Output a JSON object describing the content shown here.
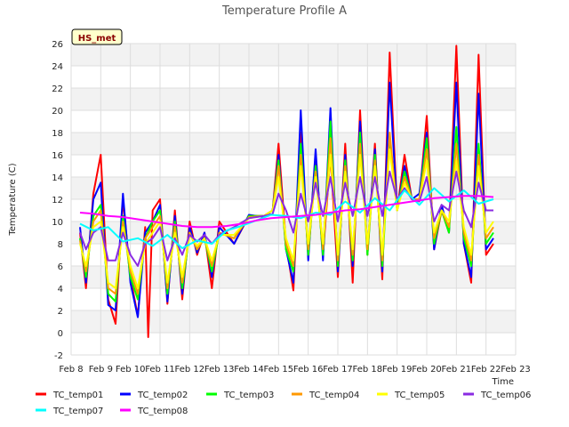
{
  "chart_data": {
    "type": "line",
    "title": "Temperature Profile A",
    "xlabel": "Time",
    "ylabel": "Temperature (C)",
    "badge": "HS_met",
    "ylim": [
      -2,
      26
    ],
    "yticks": [
      -2,
      0,
      2,
      4,
      6,
      8,
      10,
      12,
      14,
      16,
      18,
      20,
      22,
      24,
      26
    ],
    "xlim": [
      8,
      23
    ],
    "xticks": [
      {
        "v": 8,
        "label": "Feb 8"
      },
      {
        "v": 9,
        "label": "Feb 9"
      },
      {
        "v": 10,
        "label": "Feb 10"
      },
      {
        "v": 11,
        "label": "Feb 11"
      },
      {
        "v": 12,
        "label": "Feb 12"
      },
      {
        "v": 13,
        "label": "Feb 13"
      },
      {
        "v": 14,
        "label": "Feb 14"
      },
      {
        "v": 15,
        "label": "Feb 15"
      },
      {
        "v": 16,
        "label": "Feb 16"
      },
      {
        "v": 17,
        "label": "Feb 17"
      },
      {
        "v": 18,
        "label": "Feb 18"
      },
      {
        "v": 19,
        "label": "Feb 19"
      },
      {
        "v": 20,
        "label": "Feb 20"
      },
      {
        "v": 21,
        "label": "Feb 21"
      },
      {
        "v": 22,
        "label": "Feb 22"
      },
      {
        "v": 23,
        "label": "Feb 23"
      }
    ],
    "grid": true,
    "legend_position": "bottom",
    "series": [
      {
        "name": "TC_temp01",
        "color": "#ff0000",
        "x": [
          8.3,
          8.5,
          8.75,
          9.0,
          9.25,
          9.5,
          9.75,
          10.0,
          10.25,
          10.5,
          10.6,
          10.75,
          11.0,
          11.25,
          11.5,
          11.75,
          12.0,
          12.25,
          12.5,
          12.75,
          13.0,
          13.5,
          14.0,
          14.5,
          14.8,
          15.0,
          15.25,
          15.5,
          15.75,
          16.0,
          16.25,
          16.5,
          16.75,
          17.0,
          17.25,
          17.5,
          17.75,
          18.0,
          18.25,
          18.5,
          18.75,
          19.0,
          19.25,
          19.5,
          19.75,
          20.0,
          20.25,
          20.5,
          20.75,
          21.0,
          21.25,
          21.5,
          21.75,
          22.0,
          22.25
        ],
        "y": [
          9.0,
          4.0,
          12.5,
          16.0,
          3.0,
          0.8,
          12.0,
          5.0,
          1.5,
          9.5,
          -0.4,
          11.0,
          12.0,
          2.6,
          11.0,
          3.0,
          10.0,
          7.0,
          9.0,
          4.0,
          10.0,
          8.0,
          10.5,
          10.5,
          11.0,
          17.0,
          8.0,
          3.8,
          18.0,
          7.0,
          16.0,
          7.0,
          16.0,
          5.0,
          17.0,
          4.5,
          20.0,
          7.0,
          17.0,
          4.8,
          25.2,
          11.0,
          16.0,
          12.0,
          12.0,
          19.5,
          7.5,
          11.0,
          9.0,
          25.8,
          8.0,
          4.5,
          25.0,
          7.0,
          8.0
        ]
      },
      {
        "name": "TC_temp02",
        "color": "#0000ff",
        "x": [
          8.3,
          8.5,
          8.75,
          9.0,
          9.25,
          9.5,
          9.75,
          10.0,
          10.25,
          10.5,
          10.75,
          11.0,
          11.25,
          11.5,
          11.75,
          12.0,
          12.25,
          12.5,
          12.75,
          13.0,
          13.5,
          14.0,
          14.5,
          14.8,
          15.0,
          15.25,
          15.5,
          15.75,
          16.0,
          16.25,
          16.5,
          16.75,
          17.0,
          17.25,
          17.5,
          17.75,
          18.0,
          18.25,
          18.5,
          18.75,
          19.0,
          19.25,
          19.5,
          19.75,
          20.0,
          20.25,
          20.5,
          20.75,
          21.0,
          21.25,
          21.5,
          21.75,
          22.0,
          22.25
        ],
        "y": [
          9.5,
          4.5,
          12.0,
          13.5,
          2.5,
          2.0,
          12.5,
          4.5,
          1.4,
          9.0,
          10.0,
          11.5,
          2.8,
          10.5,
          3.5,
          9.5,
          7.2,
          9.0,
          5.0,
          9.5,
          8.0,
          10.6,
          10.4,
          11.0,
          16.0,
          7.5,
          4.5,
          20.0,
          6.5,
          16.5,
          6.5,
          20.2,
          5.5,
          16.0,
          6.0,
          19.0,
          7.5,
          16.5,
          5.5,
          22.5,
          11.0,
          15.0,
          12.0,
          12.5,
          18.0,
          7.5,
          11.5,
          9.0,
          22.5,
          8.0,
          5.0,
          21.5,
          7.5,
          8.5
        ]
      },
      {
        "name": "TC_temp03",
        "color": "#00ff00",
        "x": [
          8.3,
          8.5,
          8.75,
          9.0,
          9.25,
          9.5,
          9.75,
          10.0,
          10.25,
          10.5,
          10.75,
          11.0,
          11.25,
          11.5,
          11.75,
          12.0,
          12.25,
          12.5,
          12.75,
          13.0,
          13.5,
          14.0,
          14.5,
          14.8,
          15.0,
          15.25,
          15.5,
          15.75,
          16.0,
          16.25,
          16.5,
          16.75,
          17.0,
          17.25,
          17.5,
          17.75,
          18.0,
          18.25,
          18.5,
          18.75,
          19.0,
          19.25,
          19.5,
          19.75,
          20.0,
          20.25,
          20.5,
          20.75,
          21.0,
          21.25,
          21.5,
          21.75,
          22.0,
          22.25
        ],
        "y": [
          8.5,
          5.0,
          10.5,
          11.5,
          3.5,
          2.8,
          10.5,
          5.0,
          3.0,
          8.5,
          10.0,
          11.0,
          3.5,
          10.0,
          4.0,
          9.0,
          7.5,
          8.5,
          5.5,
          9.0,
          8.5,
          10.5,
          10.5,
          11.0,
          15.5,
          7.5,
          5.5,
          17.0,
          7.0,
          15.0,
          7.0,
          19.0,
          6.0,
          15.5,
          6.5,
          18.0,
          7.0,
          16.0,
          6.0,
          17.5,
          11.0,
          14.5,
          12.0,
          12.0,
          17.5,
          8.0,
          11.0,
          9.0,
          18.5,
          8.5,
          6.0,
          17.0,
          8.0,
          9.0
        ]
      },
      {
        "name": "TC_temp04",
        "color": "#ff9900",
        "x": [
          8.3,
          8.5,
          8.75,
          9.0,
          9.25,
          9.5,
          9.75,
          10.0,
          10.25,
          10.5,
          10.75,
          11.0,
          11.25,
          11.5,
          11.75,
          12.0,
          12.25,
          12.5,
          12.75,
          13.0,
          13.5,
          14.0,
          14.5,
          14.8,
          15.0,
          15.25,
          15.5,
          15.75,
          16.0,
          16.25,
          16.5,
          16.75,
          17.0,
          17.25,
          17.5,
          17.75,
          18.0,
          18.25,
          18.5,
          18.75,
          19.0,
          19.25,
          19.5,
          19.75,
          20.0,
          20.25,
          20.5,
          20.75,
          21.0,
          21.25,
          21.5,
          21.75,
          22.0,
          22.25
        ],
        "y": [
          8.3,
          5.5,
          10.0,
          11.0,
          4.0,
          3.5,
          10.0,
          5.5,
          3.5,
          8.5,
          9.5,
          10.5,
          4.0,
          9.5,
          4.5,
          9.0,
          7.5,
          8.5,
          6.0,
          9.0,
          8.5,
          10.4,
          10.5,
          11.0,
          15.0,
          8.0,
          6.0,
          16.0,
          7.5,
          14.5,
          7.5,
          17.5,
          6.5,
          15.0,
          7.0,
          17.0,
          7.5,
          15.5,
          6.5,
          18.0,
          11.0,
          14.0,
          12.0,
          12.0,
          16.5,
          8.5,
          11.0,
          9.5,
          17.0,
          9.0,
          6.5,
          16.0,
          8.5,
          9.5
        ]
      },
      {
        "name": "TC_temp05",
        "color": "#ffff00",
        "x": [
          8.3,
          8.5,
          8.75,
          9.0,
          9.25,
          9.5,
          9.75,
          10.0,
          10.25,
          10.5,
          10.75,
          11.0,
          11.25,
          11.5,
          11.75,
          12.0,
          12.25,
          12.5,
          12.75,
          13.0,
          13.5,
          14.0,
          14.5,
          14.8,
          15.0,
          15.25,
          15.5,
          15.75,
          16.0,
          16.25,
          16.5,
          16.75,
          17.0,
          17.25,
          17.5,
          17.75,
          18.0,
          18.25,
          18.5,
          18.75,
          19.0,
          19.25,
          19.5,
          19.75,
          20.0,
          20.25,
          20.5,
          20.75,
          21.0,
          21.25,
          21.5,
          21.75,
          22.0,
          22.25
        ],
        "y": [
          8.0,
          6.0,
          9.5,
          10.0,
          4.5,
          4.0,
          9.5,
          6.0,
          4.0,
          8.0,
          9.0,
          10.0,
          4.5,
          9.0,
          5.0,
          8.8,
          7.8,
          8.5,
          6.5,
          8.8,
          8.8,
          10.3,
          10.5,
          11.0,
          14.0,
          8.5,
          6.5,
          15.0,
          8.0,
          14.0,
          8.0,
          16.0,
          7.0,
          14.5,
          7.5,
          16.0,
          8.0,
          15.0,
          7.0,
          16.5,
          11.0,
          13.5,
          12.0,
          11.8,
          15.5,
          9.0,
          11.0,
          10.0,
          15.5,
          9.5,
          7.0,
          15.0,
          9.0,
          10.0
        ]
      },
      {
        "name": "TC_temp06",
        "color": "#8a2be2",
        "x": [
          8.3,
          8.5,
          8.75,
          9.0,
          9.25,
          9.5,
          9.75,
          10.0,
          10.25,
          10.5,
          10.75,
          11.0,
          11.25,
          11.5,
          11.75,
          12.0,
          12.25,
          12.5,
          12.75,
          13.0,
          13.5,
          14.0,
          14.5,
          14.8,
          15.0,
          15.25,
          15.5,
          15.75,
          16.0,
          16.25,
          16.5,
          16.75,
          17.0,
          17.25,
          17.5,
          17.75,
          18.0,
          18.25,
          18.5,
          18.75,
          19.0,
          19.25,
          19.5,
          19.75,
          20.0,
          20.25,
          20.5,
          20.75,
          21.0,
          21.25,
          21.5,
          21.75,
          22.0,
          22.25
        ],
        "y": [
          9.0,
          7.5,
          9.0,
          9.5,
          6.5,
          6.5,
          9.0,
          7.0,
          6.0,
          8.0,
          8.5,
          9.5,
          6.5,
          8.5,
          7.0,
          8.8,
          8.2,
          8.8,
          8.0,
          8.8,
          9.5,
          10.3,
          10.5,
          10.7,
          12.5,
          11.0,
          9.0,
          12.5,
          10.0,
          13.5,
          10.5,
          14.0,
          10.0,
          13.5,
          10.5,
          14.0,
          10.5,
          14.0,
          10.5,
          14.5,
          12.0,
          13.0,
          12.0,
          11.8,
          14.0,
          10.0,
          11.5,
          11.0,
          14.5,
          11.0,
          9.5,
          13.5,
          11.0,
          11.0
        ]
      },
      {
        "name": "TC_temp07",
        "color": "#00ffff",
        "x": [
          8.3,
          8.75,
          9.25,
          9.75,
          10.25,
          10.75,
          11.25,
          11.75,
          12.25,
          12.75,
          13.25,
          13.75,
          14.25,
          14.75,
          15.25,
          15.75,
          16.25,
          16.75,
          17.25,
          17.75,
          18.25,
          18.75,
          19.25,
          19.75,
          20.25,
          20.75,
          21.25,
          21.75,
          22.25
        ],
        "y": [
          9.8,
          9.2,
          9.5,
          8.2,
          8.5,
          7.8,
          8.8,
          7.6,
          8.3,
          8.0,
          9.2,
          9.6,
          10.1,
          10.6,
          10.5,
          10.3,
          10.8,
          10.6,
          11.8,
          10.8,
          12.1,
          11.0,
          12.8,
          11.5,
          13.0,
          11.8,
          12.8,
          11.6,
          12.0
        ]
      },
      {
        "name": "TC_temp08",
        "color": "#ff00ff",
        "x": [
          8.3,
          8.75,
          9.25,
          9.75,
          10.25,
          10.75,
          11.25,
          11.75,
          12.25,
          12.75,
          13.25,
          13.75,
          14.25,
          14.75,
          15.25,
          15.75,
          16.25,
          16.75,
          17.25,
          17.75,
          18.25,
          18.75,
          19.25,
          19.75,
          20.25,
          20.75,
          21.25,
          21.75,
          22.25
        ],
        "y": [
          10.8,
          10.7,
          10.5,
          10.4,
          10.2,
          10.0,
          9.8,
          9.6,
          9.5,
          9.5,
          9.6,
          9.8,
          10.1,
          10.3,
          10.4,
          10.5,
          10.6,
          10.8,
          11.0,
          11.1,
          11.3,
          11.5,
          11.7,
          11.9,
          12.1,
          12.2,
          12.3,
          12.3,
          12.2
        ]
      }
    ]
  }
}
